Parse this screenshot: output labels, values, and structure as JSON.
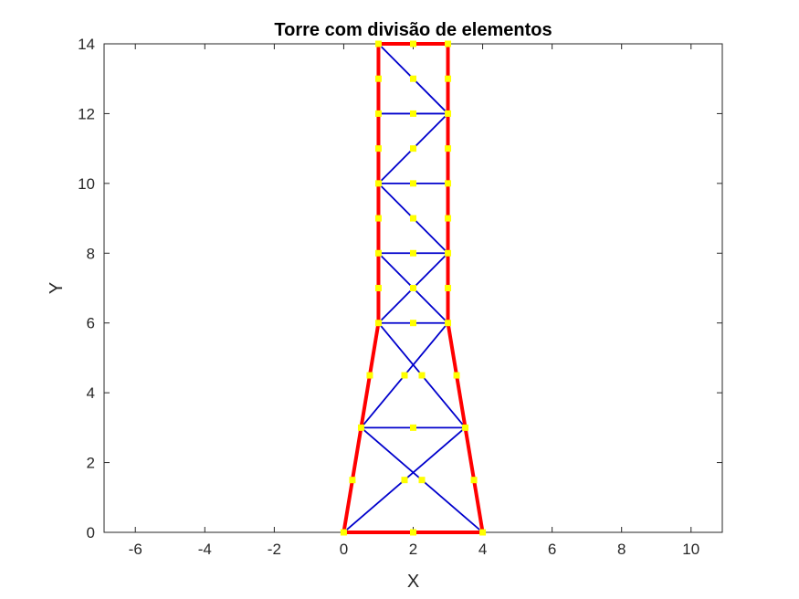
{
  "chart_data": {
    "type": "line",
    "title": "Torre com divisão de elementos",
    "xlabel": "X",
    "ylabel": "Y",
    "xlim": [
      -6.9,
      10.9
    ],
    "ylim": [
      0,
      14
    ],
    "x_ticks": [
      -6,
      -4,
      -2,
      0,
      2,
      4,
      6,
      8,
      10
    ],
    "x_tick_labels": [
      "-6",
      "-4",
      "-2",
      "0",
      "2",
      "4",
      "6",
      "8",
      "10"
    ],
    "y_ticks": [
      0,
      2,
      4,
      6,
      8,
      10,
      12,
      14
    ],
    "y_tick_labels": [
      "0",
      "2",
      "4",
      "6",
      "8",
      "10",
      "12",
      "14"
    ],
    "grid": false,
    "series": [
      {
        "style": "outer-frame",
        "color": "#ff0000",
        "segments": [
          [
            [
              0,
              0
            ],
            [
              4,
              0
            ]
          ],
          [
            [
              0,
              0
            ],
            [
              0.5,
              3
            ]
          ],
          [
            [
              0.5,
              3
            ],
            [
              1,
              6
            ]
          ],
          [
            [
              4,
              0
            ],
            [
              3.5,
              3
            ]
          ],
          [
            [
              3.5,
              3
            ],
            [
              3,
              6
            ]
          ],
          [
            [
              1,
              6
            ],
            [
              1,
              14
            ]
          ],
          [
            [
              3,
              6
            ],
            [
              3,
              14
            ]
          ],
          [
            [
              1,
              14
            ],
            [
              3,
              14
            ]
          ]
        ]
      },
      {
        "style": "bracing",
        "color": "#0000cc",
        "segments": [
          [
            [
              0,
              0
            ],
            [
              3.5,
              3
            ]
          ],
          [
            [
              4,
              0
            ],
            [
              0.5,
              3
            ]
          ],
          [
            [
              0.5,
              3
            ],
            [
              3.5,
              3
            ]
          ],
          [
            [
              0.5,
              3
            ],
            [
              3,
              6
            ]
          ],
          [
            [
              3.5,
              3
            ],
            [
              1,
              6
            ]
          ],
          [
            [
              1,
              6
            ],
            [
              3,
              6
            ]
          ],
          [
            [
              1,
              6
            ],
            [
              3,
              8
            ]
          ],
          [
            [
              1,
              8
            ],
            [
              3,
              8
            ]
          ],
          [
            [
              1,
              8
            ],
            [
              3,
              6
            ]
          ],
          [
            [
              3,
              8
            ],
            [
              1,
              10
            ]
          ],
          [
            [
              1,
              10
            ],
            [
              3,
              10
            ]
          ],
          [
            [
              1,
              10
            ],
            [
              3,
              12
            ]
          ],
          [
            [
              1,
              12
            ],
            [
              3,
              12
            ]
          ],
          [
            [
              3,
              12
            ],
            [
              1,
              14
            ]
          ]
        ]
      },
      {
        "style": "division-points",
        "color": "#ffff00",
        "points": [
          [
            0,
            0
          ],
          [
            2,
            0
          ],
          [
            4,
            0
          ],
          [
            0.25,
            1.5
          ],
          [
            3.75,
            1.5
          ],
          [
            1.75,
            1.5
          ],
          [
            2.25,
            1.5
          ],
          [
            0.5,
            3
          ],
          [
            2,
            3
          ],
          [
            3.5,
            3
          ],
          [
            0.75,
            4.5
          ],
          [
            3.25,
            4.5
          ],
          [
            1.75,
            4.5
          ],
          [
            2.25,
            4.5
          ],
          [
            1,
            6
          ],
          [
            2,
            6
          ],
          [
            3,
            6
          ],
          [
            1,
            7
          ],
          [
            2,
            7
          ],
          [
            3,
            7
          ],
          [
            1,
            8
          ],
          [
            2,
            8
          ],
          [
            3,
            8
          ],
          [
            1,
            9
          ],
          [
            2,
            9
          ],
          [
            3,
            9
          ],
          [
            1,
            10
          ],
          [
            2,
            10
          ],
          [
            3,
            10
          ],
          [
            1,
            11
          ],
          [
            2,
            11
          ],
          [
            3,
            11
          ],
          [
            1,
            12
          ],
          [
            2,
            12
          ],
          [
            3,
            12
          ],
          [
            1,
            13
          ],
          [
            2,
            13
          ],
          [
            3,
            13
          ],
          [
            1,
            14
          ],
          [
            2,
            14
          ],
          [
            3,
            14
          ]
        ]
      }
    ]
  }
}
